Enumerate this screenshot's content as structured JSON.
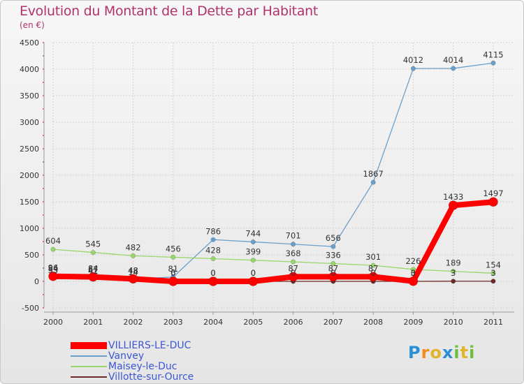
{
  "title": "Evolution du Montant de la Dette par Habitant",
  "subtitle": "(en €)",
  "logo": {
    "text": "Proxiti"
  },
  "chart_data": {
    "type": "line",
    "title": "Evolution du Montant de la Dette par Habitant",
    "ylabel": "(en €)",
    "xlabel": "",
    "x": [
      "2000",
      "2001",
      "2002",
      "2003",
      "2004",
      "2005",
      "2006",
      "2007",
      "2008",
      "2009",
      "2010",
      "2011"
    ],
    "ylim": [
      -500,
      4500
    ],
    "yticks": [
      -500,
      0,
      500,
      1000,
      1500,
      2000,
      2500,
      3000,
      3500,
      4000,
      4500
    ],
    "series": [
      {
        "name": "VILLIERS-LE-DUC",
        "color": "#ff0000",
        "values": [
          96,
          84,
          48,
          0,
          0,
          0,
          87,
          87,
          87,
          3,
          1433,
          1497
        ]
      },
      {
        "name": "Vanvey",
        "color": "#6aa0cc",
        "values": [
          84,
          67,
          48,
          81,
          786,
          744,
          701,
          656,
          1867,
          4012,
          4014,
          4115
        ]
      },
      {
        "name": "Maisey-le-Duc",
        "color": "#99d66b",
        "values": [
          604,
          545,
          482,
          456,
          428,
          399,
          368,
          336,
          301,
          226,
          189,
          154
        ]
      },
      {
        "name": "Villotte-sur-Ource",
        "color": "#6b2b2b",
        "values": [
          55,
          41,
          14,
          6,
          0,
          0,
          0,
          0,
          0,
          0,
          3,
          3
        ]
      }
    ]
  }
}
